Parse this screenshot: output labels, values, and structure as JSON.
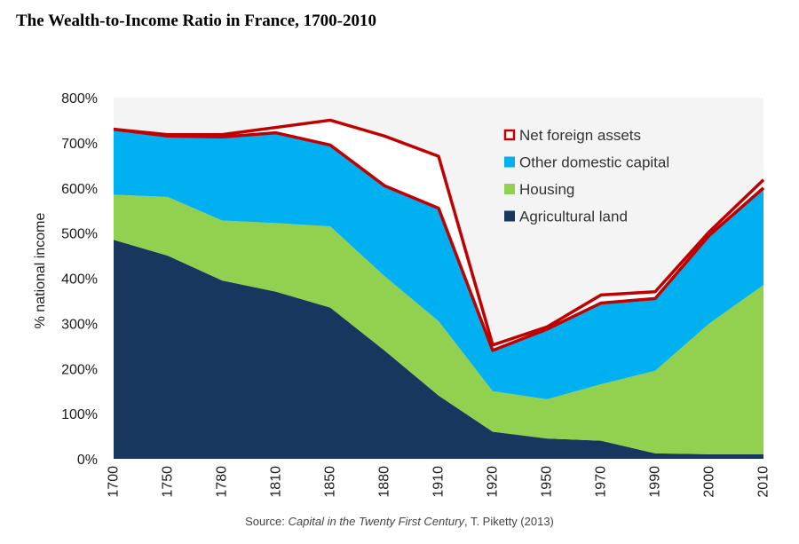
{
  "chart_data": {
    "type": "area",
    "title": "The Wealth-to-Income Ratio in France, 1700-2010",
    "ylabel": "% national income",
    "xlabel": "",
    "ylim": [
      0,
      800
    ],
    "yticks": [
      "0%",
      "100%",
      "200%",
      "300%",
      "400%",
      "500%",
      "600%",
      "700%",
      "800%"
    ],
    "categories": [
      "1700",
      "1750",
      "1780",
      "1810",
      "1850",
      "1880",
      "1910",
      "1920",
      "1950",
      "1970",
      "1990",
      "2000",
      "2010"
    ],
    "stacked": true,
    "grid": false,
    "legend_position": "top-right",
    "series": [
      {
        "name": "Agricultural land",
        "color": "#17375e",
        "values": [
          485,
          450,
          395,
          370,
          335,
          240,
          140,
          60,
          45,
          40,
          12,
          10,
          10
        ]
      },
      {
        "name": "Housing",
        "color": "#92d050",
        "values": [
          100,
          130,
          133,
          152,
          180,
          165,
          165,
          90,
          87,
          125,
          183,
          290,
          375
        ]
      },
      {
        "name": "Other domestic capital",
        "color": "#00b0f0",
        "values": [
          145,
          135,
          185,
          200,
          180,
          200,
          250,
          90,
          155,
          180,
          160,
          195,
          215
        ]
      },
      {
        "name": "Net foreign assets",
        "color": "#c00000",
        "values": [
          0,
          3,
          5,
          12,
          55,
          110,
          115,
          12,
          5,
          18,
          15,
          8,
          18
        ]
      }
    ],
    "source": {
      "prefix": "Source: ",
      "work": "Capital in the Twenty First Century",
      "suffix": ", T. Piketty (2013)"
    }
  }
}
